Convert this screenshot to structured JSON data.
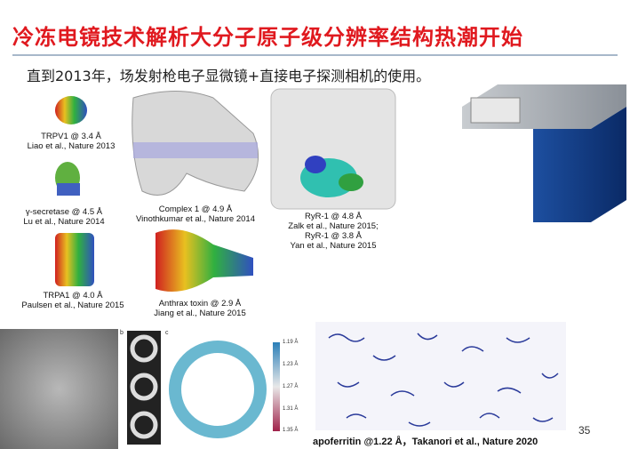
{
  "header": {
    "title": "冷冻电镜技术解析大分子原子级分辨率结构热潮开始",
    "subtitle": "直到2013年，场发射枪电子显微镜+直接电子探测相机的使用。"
  },
  "structures": [
    {
      "name": "TRPV1 @ 3.4 Å",
      "ref": "Liao et al., Nature 2013"
    },
    {
      "name": "γ-secretase @ 4.5 Å",
      "ref": "Lu et al., Nature 2014"
    },
    {
      "name": "TRPA1 @ 4.0 Å",
      "ref": "Paulsen et al., Nature 2015"
    },
    {
      "name": "Complex 1 @ 4.9 Å",
      "ref": "Vinothkumar et al., Nature 2014"
    },
    {
      "name": "Anthrax toxin @ 2.9 Å",
      "ref": "Jiang et al., Nature 2015"
    },
    {
      "name": "RyR-1 @ 4.8 Å",
      "ref": "Zalk et al., Nature 2015;",
      "name2": "RyR-1 @ 3.8 Å",
      "ref2": "Yan et al., Nature 2015"
    }
  ],
  "panels": {
    "b": "b",
    "c": "c",
    "colorbar": [
      "1.19 Å",
      "1.23 Å",
      "1.27 Å",
      "1.31 Å",
      "1.35 Å"
    ]
  },
  "apoferritin": "apoferritin @1.22 Å，Takanori et al., Nature 2020",
  "page_number": "35"
}
